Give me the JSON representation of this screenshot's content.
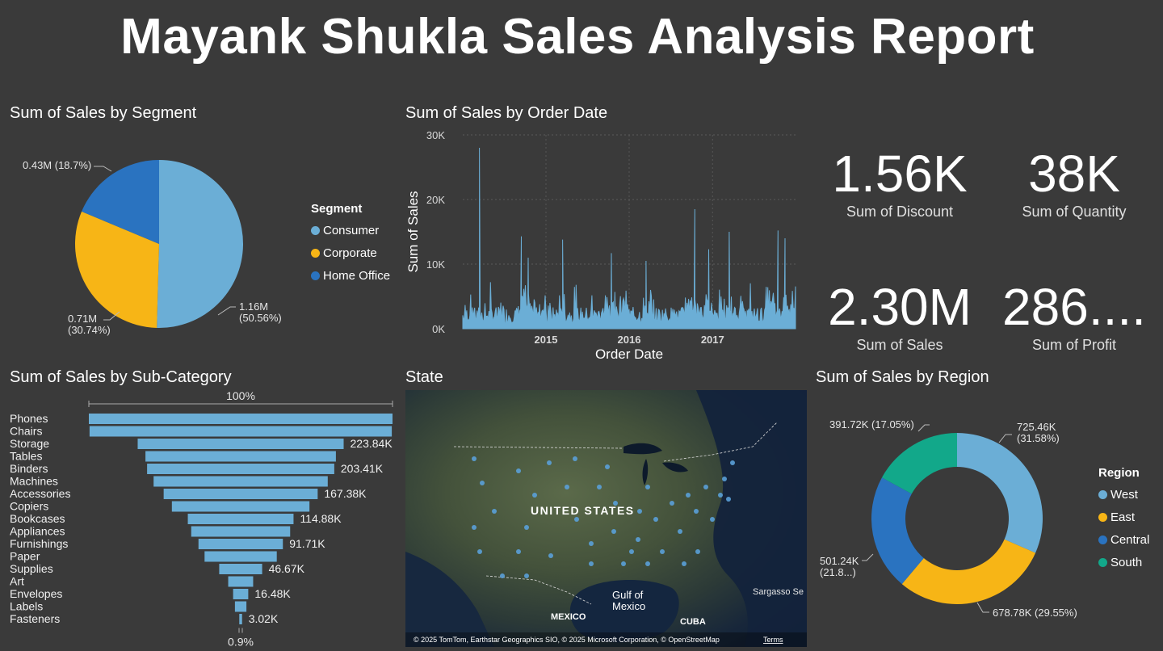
{
  "report_title": "Mayank Shukla Sales Analysis Report",
  "colors": {
    "light_blue": "#6baed6",
    "yellow": "#f7b516",
    "dark_blue": "#2a73c0",
    "teal": "#12a88a",
    "background": "#3a3a3a"
  },
  "segment_chart": {
    "title": "Sum of Sales by Segment",
    "legend_title": "Segment",
    "chart_data": {
      "type": "pie",
      "categories": [
        "Consumer",
        "Corporate",
        "Home Office"
      ],
      "values": [
        1.16,
        0.71,
        0.43
      ],
      "unit": "M",
      "data_labels": [
        "1.16M\n(50.56%)",
        "0.71M\n(30.74%)",
        "0.43M (18.7%)"
      ]
    }
  },
  "order_date_chart": {
    "title": "Sum of Sales by Order Date",
    "chart_data": {
      "type": "area",
      "xlabel": "Order Date",
      "ylabel": "Sum of Sales",
      "ylim": [
        0,
        30000
      ],
      "y_ticks": [
        "0K",
        "10K",
        "20K",
        "30K"
      ],
      "x_ticks": [
        "2015",
        "2016",
        "2017"
      ],
      "x_range": [
        "2014-01",
        "2017-12"
      ],
      "peaks": [
        {
          "x": "2014-03",
          "y": 28000
        },
        {
          "x": "2014-09",
          "y": 14300
        },
        {
          "x": "2014-10",
          "y": 11000
        },
        {
          "x": "2015-03",
          "y": 13800
        },
        {
          "x": "2015-10",
          "y": 11700
        },
        {
          "x": "2016-03",
          "y": 10500
        },
        {
          "x": "2016-10",
          "y": 18500
        },
        {
          "x": "2016-12",
          "y": 12300
        },
        {
          "x": "2017-03",
          "y": 15000
        },
        {
          "x": "2017-10",
          "y": 15200
        },
        {
          "x": "2017-11",
          "y": 14000
        }
      ]
    }
  },
  "kpis": [
    {
      "value": "1.56K",
      "label": "Sum of Discount"
    },
    {
      "value": "38K",
      "label": "Sum of Quantity"
    },
    {
      "value": "2.30M",
      "label": "Sum of Sales"
    },
    {
      "value": "286....",
      "label": "Sum of Profit"
    }
  ],
  "subcategory_chart": {
    "title": "Sum of Sales by Sub-Category",
    "top_label": "100%",
    "bottom_label": "0.9%",
    "chart_data": {
      "type": "bar",
      "categories": [
        "Phones",
        "Chairs",
        "Storage",
        "Tables",
        "Binders",
        "Machines",
        "Accessories",
        "Copiers",
        "Bookcases",
        "Appliances",
        "Furnishings",
        "Paper",
        "Supplies",
        "Art",
        "Envelopes",
        "Labels",
        "Fasteners"
      ],
      "values": [
        330.01,
        328.45,
        223.84,
        206.97,
        203.41,
        189.24,
        167.38,
        149.53,
        114.88,
        107.53,
        91.71,
        78.48,
        46.67,
        27.12,
        16.48,
        12.49,
        3.02
      ],
      "data_labels": [
        "",
        "",
        "223.84K",
        "",
        "203.41K",
        "",
        "167.38K",
        "",
        "114.88K",
        "",
        "91.71K",
        "",
        "46.67K",
        "",
        "16.48K",
        "",
        "3.02K"
      ],
      "unit": "K"
    }
  },
  "map": {
    "title": "State",
    "country_label": "UNITED STATES",
    "gulf_label": "Gulf of\nMexico",
    "mexico_label": "MEXICO",
    "cuba_label": "CUBA",
    "sargasso_label": "Sargasso Se",
    "attribution": "© 2025 TomTom, Earthstar Geographics SIO, © 2025 Microsoft Corporation, © OpenStreetMap",
    "terms": "Terms"
  },
  "region_chart": {
    "title": "Sum of Sales by Region",
    "legend_title": "Region",
    "chart_data": {
      "type": "pie",
      "donut": true,
      "categories": [
        "West",
        "East",
        "Central",
        "South"
      ],
      "values": [
        725.46,
        678.78,
        501.24,
        391.72
      ],
      "unit": "K",
      "data_labels": [
        "725.46K\n(31.58%)",
        "678.78K (29.55%)",
        "501.24K\n(21.8...)",
        "391.72K (17.05%)"
      ]
    }
  }
}
